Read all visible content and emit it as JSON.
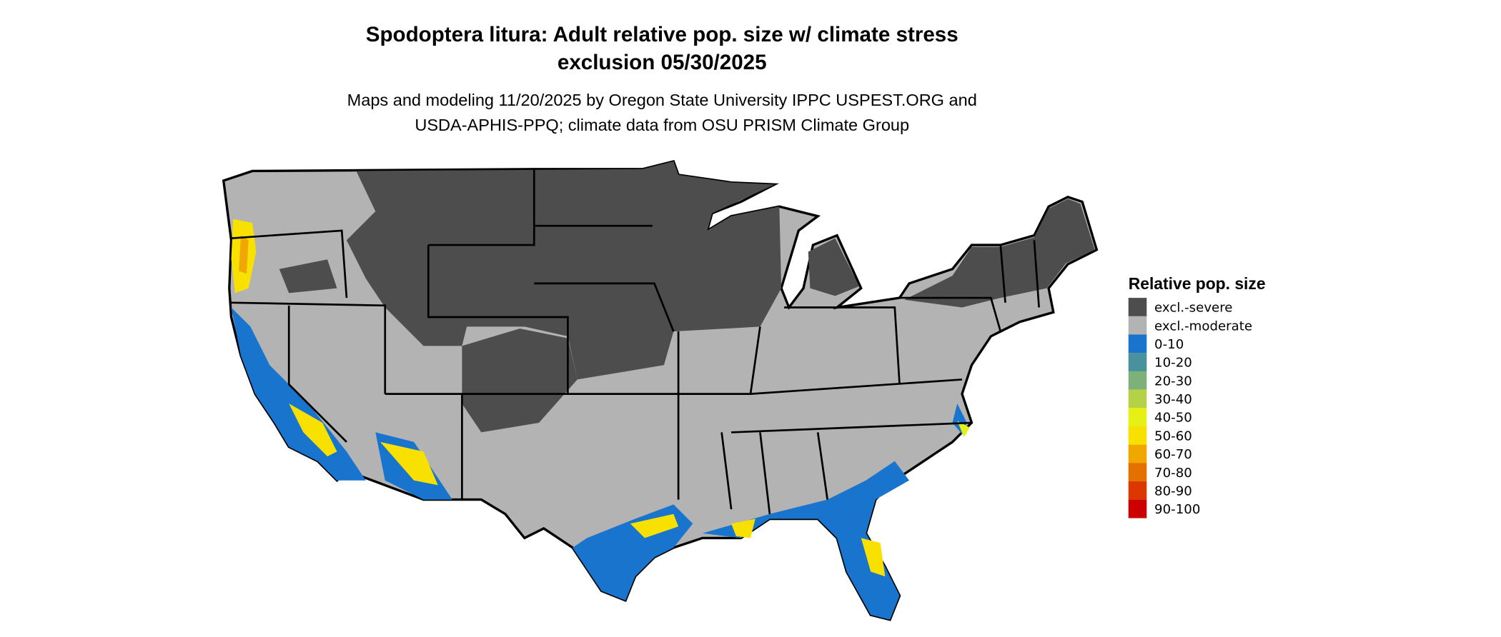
{
  "title_line1": "Spodoptera litura: Adult relative pop. size w/ climate stress",
  "title_line2": "exclusion 05/30/2025",
  "subtitle_line1": "Maps and modeling 11/20/2025 by Oregon State University IPPC USPEST.ORG and",
  "subtitle_line2": "USDA-APHIS-PPQ; climate data from OSU PRISM Climate Group",
  "chart_data": {
    "type": "map",
    "region": "Contiguous United States",
    "legend": {
      "title": "Relative pop. size",
      "placement": "right",
      "items": [
        {
          "label": "excl.-severe",
          "color": "#4d4d4d"
        },
        {
          "label": "excl.-moderate",
          "color": "#b3b3b3"
        },
        {
          "label": "0-10",
          "color": "#1874cd"
        },
        {
          "label": "10-20",
          "color": "#4a919e"
        },
        {
          "label": "20-30",
          "color": "#7eb07a"
        },
        {
          "label": "30-40",
          "color": "#b4d245"
        },
        {
          "label": "40-50",
          "color": "#e6f014"
        },
        {
          "label": "50-60",
          "color": "#f8e100"
        },
        {
          "label": "60-70",
          "color": "#f0a800"
        },
        {
          "label": "70-80",
          "color": "#e47000"
        },
        {
          "label": "80-90",
          "color": "#da3800"
        },
        {
          "label": "90-100",
          "color": "#cc0000"
        }
      ]
    }
  }
}
